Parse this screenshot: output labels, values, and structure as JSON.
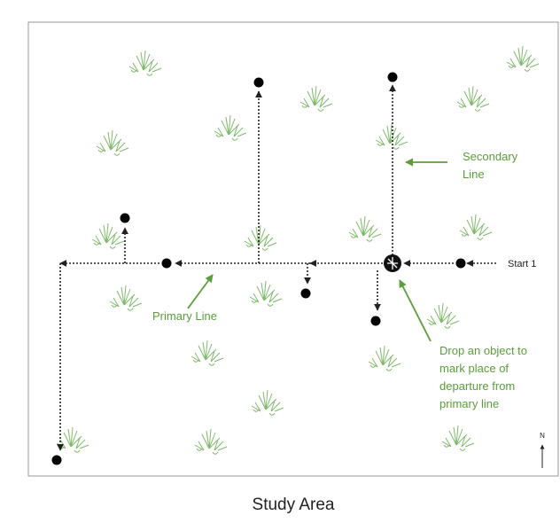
{
  "diagram": {
    "caption": "Study Area",
    "labels": {
      "secondary_line": [
        "Secondary",
        "Line"
      ],
      "primary_line": "Primary Line",
      "start": "Start 1",
      "drop_object": [
        "Drop an object to",
        "mark place of",
        "departure from",
        "primary line"
      ],
      "north": "N"
    }
  }
}
